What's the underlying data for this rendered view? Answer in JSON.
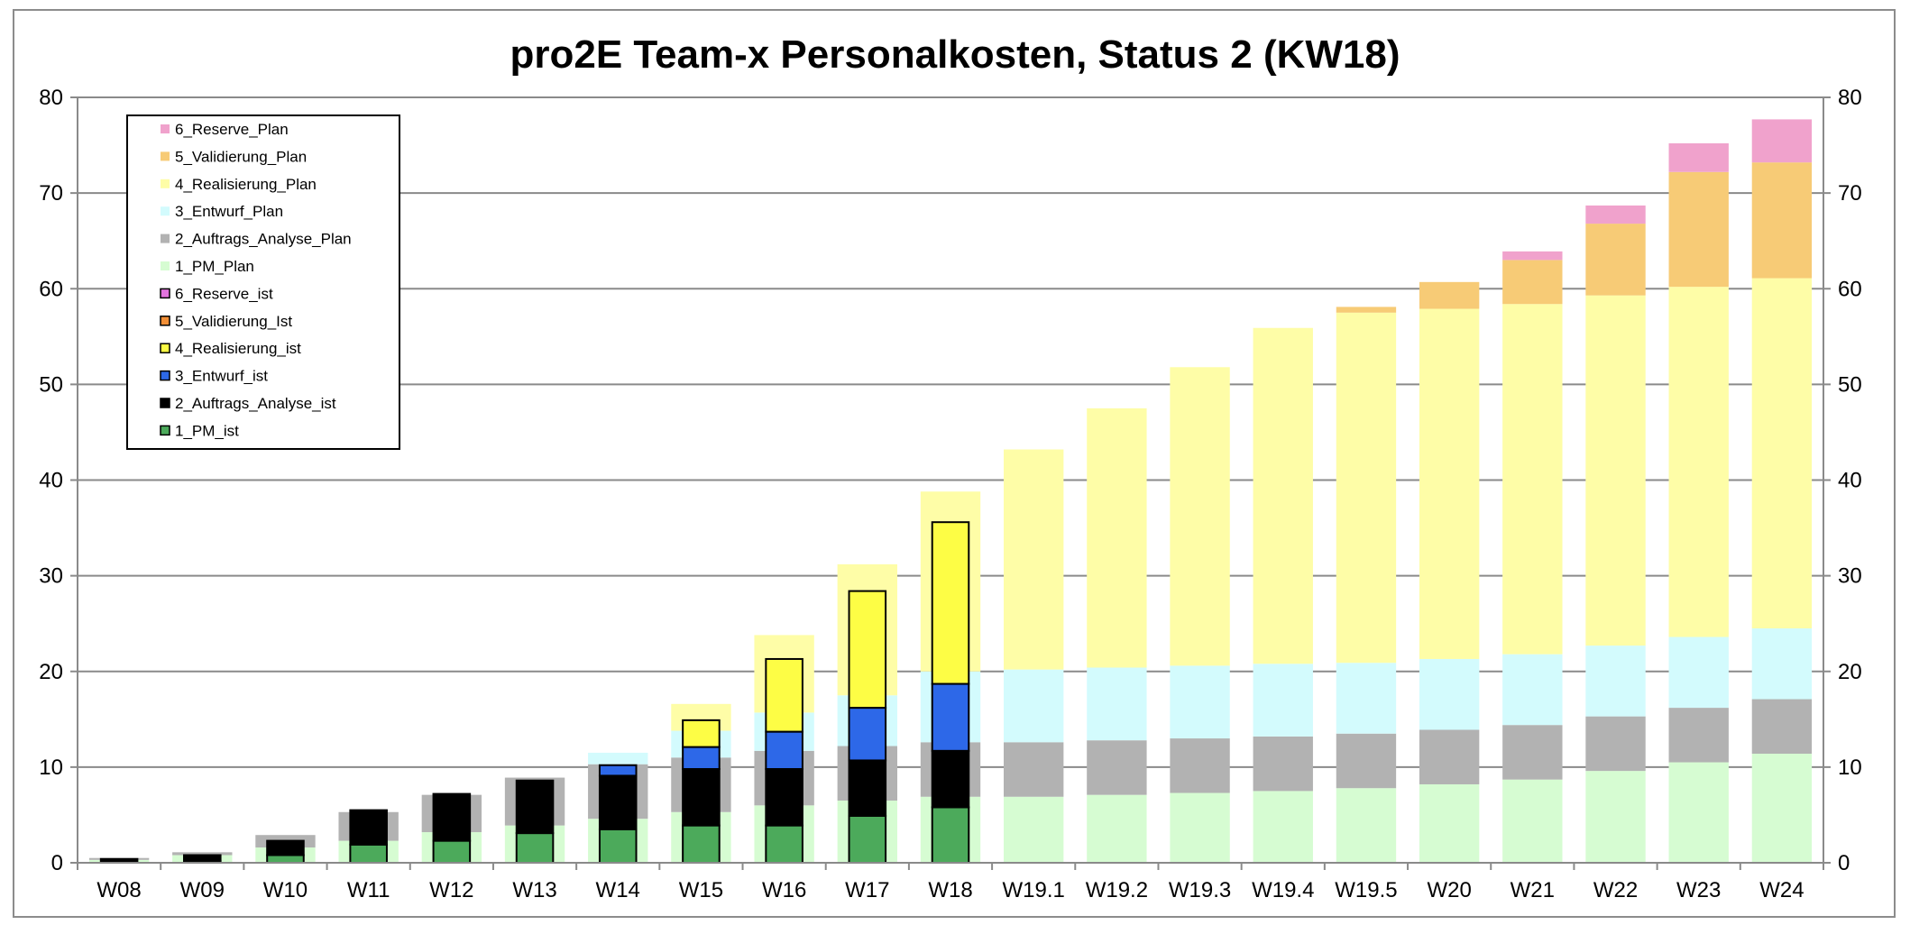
{
  "chart_data": {
    "type": "bar",
    "title": "pro2E Team-x Personalkosten, Status 2 (KW18)",
    "xlabel": "",
    "ylabel": "",
    "ylim": [
      0,
      80
    ],
    "y_ticks": [
      0,
      10,
      20,
      30,
      40,
      50,
      60,
      70,
      80
    ],
    "grid": true,
    "legend_position": "top-left",
    "stacked": true,
    "categories": [
      "W08",
      "W09",
      "W10",
      "W11",
      "W12",
      "W13",
      "W14",
      "W15",
      "W16",
      "W17",
      "W18",
      "W19.1",
      "W19.2",
      "W19.3",
      "W19.4",
      "W19.5",
      "W20",
      "W21",
      "W22",
      "W23",
      "W24"
    ],
    "plan_series": [
      {
        "name": "1_PM_Plan",
        "color": "#d6fcd2",
        "values": [
          0.3,
          0.8,
          1.6,
          2.3,
          3.2,
          3.9,
          4.6,
          5.3,
          6.0,
          6.5,
          6.9,
          6.9,
          7.1,
          7.3,
          7.5,
          7.8,
          8.2,
          8.7,
          9.6,
          10.5,
          11.4
        ]
      },
      {
        "name": "2_Auftrags_Analyse_Plan",
        "color": "#b2b2b2",
        "values": [
          0.2,
          0.3,
          1.3,
          3.0,
          3.9,
          5.0,
          5.7,
          5.7,
          5.7,
          5.7,
          5.7,
          5.7,
          5.7,
          5.7,
          5.7,
          5.7,
          5.7,
          5.7,
          5.7,
          5.7,
          5.7
        ]
      },
      {
        "name": "3_Entwurf_Plan",
        "color": "#d3fbfd",
        "values": [
          0,
          0,
          0,
          0,
          0,
          0,
          1.2,
          2.8,
          4.0,
          5.3,
          7.4,
          7.6,
          7.6,
          7.6,
          7.6,
          7.4,
          7.4,
          7.4,
          7.4,
          7.4,
          7.4
        ]
      },
      {
        "name": "4_Realisierung_Plan",
        "color": "#fefda7",
        "values": [
          0,
          0,
          0,
          0,
          0,
          0,
          0,
          2.8,
          8.1,
          13.7,
          18.8,
          23.0,
          27.1,
          31.2,
          35.1,
          36.6,
          36.6,
          36.6,
          36.6,
          36.6,
          36.6
        ]
      },
      {
        "name": "5_Validierung_Plan",
        "color": "#f7cb76",
        "values": [
          0,
          0,
          0,
          0,
          0,
          0,
          0,
          0,
          0,
          0,
          0,
          0,
          0,
          0,
          0,
          0.6,
          2.8,
          4.6,
          7.5,
          12.0,
          12.1
        ]
      },
      {
        "name": "6_Reserve_Plan",
        "color": "#f0a2cc",
        "values": [
          0,
          0,
          0,
          0,
          0,
          0,
          0,
          0,
          0,
          0,
          0,
          0,
          0,
          0,
          0,
          0,
          0,
          0.9,
          1.9,
          3.0,
          4.5
        ]
      }
    ],
    "ist_series": [
      {
        "name": "1_PM_ist",
        "color": "#4caa5b",
        "values": [
          0,
          0.2,
          0.8,
          1.9,
          2.3,
          3.1,
          3.5,
          3.9,
          3.9,
          4.9,
          5.8,
          null,
          null,
          null,
          null,
          null,
          null,
          null,
          null,
          null,
          null
        ]
      },
      {
        "name": "2_Auftrags_Analyse_ist",
        "color": "#000000",
        "values": [
          0.4,
          0.6,
          1.5,
          3.6,
          4.9,
          5.5,
          5.6,
          5.9,
          5.9,
          5.8,
          5.9,
          null,
          null,
          null,
          null,
          null,
          null,
          null,
          null,
          null,
          null
        ]
      },
      {
        "name": "3_Entwurf_ist",
        "color": "#2d68e8",
        "values": [
          0,
          0,
          0,
          0,
          0,
          0,
          1.1,
          2.3,
          3.9,
          5.5,
          7.0,
          null,
          null,
          null,
          null,
          null,
          null,
          null,
          null,
          null,
          null
        ]
      },
      {
        "name": "4_Realisierung_ist",
        "color": "#fdfd45",
        "values": [
          0,
          0,
          0,
          0,
          0,
          0,
          0,
          2.8,
          7.6,
          12.2,
          16.9,
          null,
          null,
          null,
          null,
          null,
          null,
          null,
          null,
          null,
          null
        ]
      },
      {
        "name": "5_Validierung_Ist",
        "color": "#f28f37",
        "values": [
          0,
          0,
          0,
          0,
          0,
          0,
          0,
          0,
          0,
          0,
          0,
          null,
          null,
          null,
          null,
          null,
          null,
          null,
          null,
          null,
          null
        ]
      },
      {
        "name": "6_Reserve_ist",
        "color": "#e374de",
        "values": [
          0,
          0,
          0,
          0,
          0,
          0,
          0,
          0,
          0,
          0,
          0,
          null,
          null,
          null,
          null,
          null,
          null,
          null,
          null,
          null,
          null
        ]
      }
    ],
    "legend_order": [
      {
        "name": "6_Reserve_Plan",
        "display": "6_Reserve_Plan",
        "color": "#f0a2cc",
        "bordered": false
      },
      {
        "name": "5_Validierung_Plan",
        "display": "5_Validierung_Plan",
        "color": "#f7cb76",
        "bordered": false
      },
      {
        "name": "4_Realisierung_Plan",
        "display": "4_Realisierung_Plan",
        "color": "#fefda7",
        "bordered": false
      },
      {
        "name": "3_Entwurf_Plan",
        "display": "3_Entwurf_Plan",
        "color": "#d3fbfd",
        "bordered": false
      },
      {
        "name": "2_Auftrags_Analyse_Plan",
        "display": "2_Auftrags_Analyse_Plan",
        "color": "#b2b2b2",
        "bordered": false
      },
      {
        "name": "1_PM_Plan",
        "display": "1_PM_Plan",
        "color": "#d6fcd2",
        "bordered": false
      },
      {
        "name": "6_Reserve_ist",
        "display": "6_Reserve_ist",
        "color": "#e374de",
        "bordered": true
      },
      {
        "name": "5_Validierung_Ist",
        "display": "5_Validierung_Ist",
        "color": "#f28f37",
        "bordered": true
      },
      {
        "name": "4_Realisierung_ist",
        "display": "4_Realisierung_ist",
        "color": "#fdfd45",
        "bordered": true
      },
      {
        "name": "3_Entwurf_ist",
        "display": "3_Entwurf_ist",
        "color": "#2d68e8",
        "bordered": true
      },
      {
        "name": "2_Auftrags_Analyse_ist",
        "display": "2_Auftrags_Analyse_ist",
        "color": "#000000",
        "bordered": true
      },
      {
        "name": "1_PM_ist",
        "display": "1_PM_ist",
        "color": "#4caa5b",
        "bordered": true
      }
    ]
  }
}
